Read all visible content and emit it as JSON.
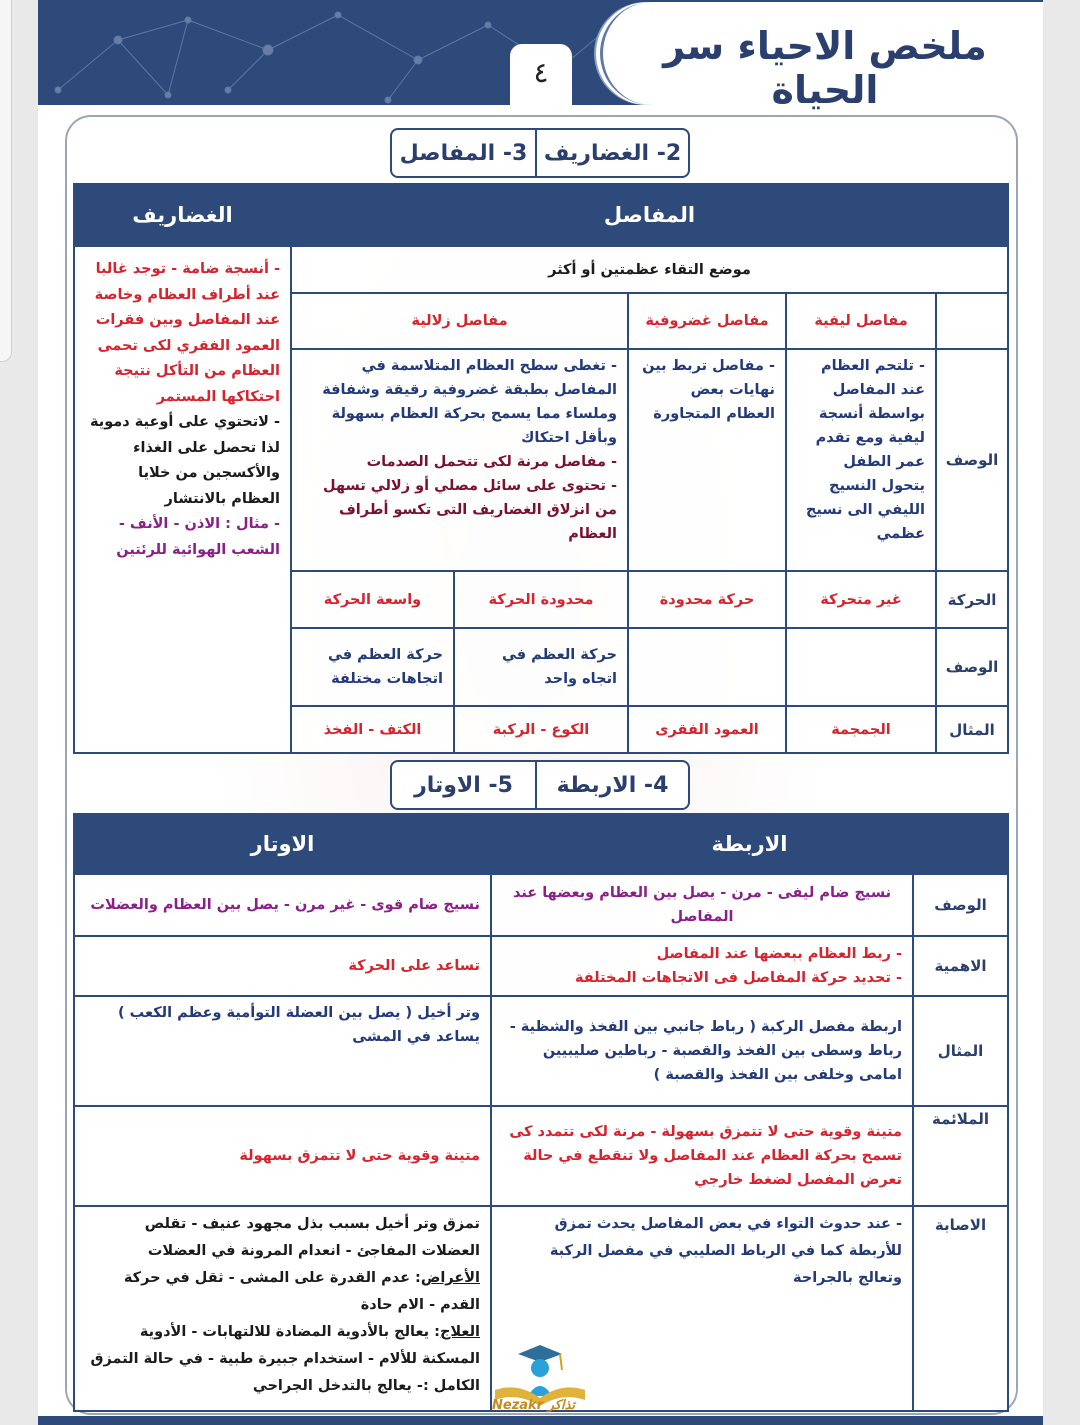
{
  "header": {
    "title": "ملخص الاحياء سر الحياة",
    "page_number": "٤"
  },
  "section1": {
    "tabs": [
      "2- الغضاريف",
      "3- المفاصل"
    ],
    "col_joints": "المفاصل",
    "col_cartilage": "الغضاريف",
    "definition": "موضع التقاء عظمتين أو أكثر",
    "types": [
      "مفاصل ليفية",
      "مفاصل غضروفية",
      "مفاصل زلالية"
    ],
    "row_labels": {
      "description": "الوصف",
      "movement": "الحركة",
      "movement_description": "الوصف",
      "example": "المثال"
    },
    "fibrous_description": "- تلتحم العظام عند المفاصل بواسطة أنسجة ليفية ومع تقدم عمر الطفل يتحول النسيج الليفي الى نسيج عظمي",
    "cartilaginous_description": "- مفاصل تربط بين نهايات بعض العظام المتجاورة",
    "synovial_description": [
      "- تغطى سطح العظام المتلاسمة في المفاصل بطبقة غضروفية رقيقة وشفافة وملساء مما يسمح بحركة العظام بسهولة وبأقل احتكاك",
      "- مفاصل مرنة لكى تتحمل الصدمات",
      "- تحتوى على سائل مصلي أو زلالي تسهل من انزلاق الغضاريف التى تكسو أطراف العظام"
    ],
    "movement": [
      "غير متحركة",
      "حركة محدودة",
      "محدودة الحركة",
      "واسعة الحركة"
    ],
    "movement_description": [
      "حركة العظم في اتجاه واحد",
      "حركة العظم في اتجاهات مختلفة"
    ],
    "examples": [
      "الجمجمة",
      "العمود الفقرى",
      "الكوع - الركبة",
      "الكتف - الفخذ"
    ],
    "cartilage_notes": [
      "- أنسجة ضامة - توجد غالبا عند أطراف العظام وخاصة عند المفاصل وبين فقرات العمود الفقري لكى تحمى العظام من التأكل نتيجة احتكاكها المستمر",
      "- لاتحتوي على أوعية دموية لذا تحصل على الغذاء والأكسجين من خلايا العظام بالانتشار",
      "- مثال : الاذن - الأنف - الشعب الهوائية للرئتين"
    ]
  },
  "section2": {
    "tabs": [
      "4- الاربطة",
      "5- الاوتار"
    ],
    "col_ligaments": "الاربطة",
    "col_tendons": "الاوتار",
    "row_labels": [
      "الوصف",
      "الاهمية",
      "المثال",
      "الملائمة",
      "الاصابة"
    ],
    "ligaments": {
      "description": "نسيج ضام ليفى - مرن - يصل بين العظام وبعضها عند المفاصل",
      "importance": [
        "- ربط العظام ببعضها عند المفاصل",
        "- تحديد حركة المفاصل فى الاتجاهات المختلفة"
      ],
      "example": "اربطة مفصل الركبة ( رباط جانبي بين الفخذ والشظية - رباط وسطى بين الفخذ والقصبة - رباطين صليبيين امامى وخلفى بين الفخذ والقصبة )",
      "fitness": "متينة وقوية حتى لا تتمزق بسهولة - مرنة لكى تتمدد كى تسمح بحركة العظام عند المفاصل ولا تنقطع في حالة تعرض المفصل لضغط خارجي",
      "injury": "- عند حدوث التواء في بعض المفاصل يحدث تمزق للأربطة كما في الرباط الصليبي في مفصل الركبة وتعالج بالجراحة"
    },
    "tendons": {
      "description": "نسيج ضام قوى - غير مرن - يصل بين العظام والعضلات",
      "importance": "تساعد على الحركة",
      "example": "وتر أخيل ( يصل بين العضلة التوأمية وعظم الكعب ) يساعد في المشى",
      "fitness": "متينة وقوية حتى لا تتمزق بسهولة",
      "injury_cause": "تمزق وتر أخيل بسبب بذل مجهود عنيف - تقلص العضلات المفاجئ - انعدام المرونة في العضلات",
      "symptoms_label": "الأعراض",
      "symptoms": ": عدم القدرة على المشى - ثقل في حركة القدم - الام حادة",
      "treatment_label": "العلاج",
      "treatment": ": يعالج بالأدوية المضادة للالتهابات - الأدوية المسكنة للألام - استخدام جبيرة طبية - في حالة التمزق الكامل :- يعالج بالتدخل الجراحي"
    }
  },
  "logo": {
    "text": "Nezakr تذاكر"
  },
  "colors": {
    "primary": "#2d4a7b",
    "red": "#d4252f",
    "navy": "#233a7a",
    "purple": "#8a1f8a"
  }
}
